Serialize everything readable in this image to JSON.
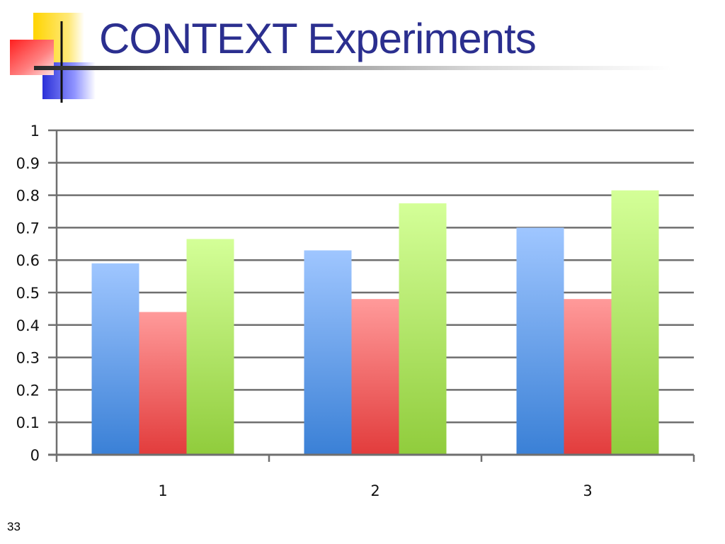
{
  "slide": {
    "title": "CONTEXT Experiments",
    "page_number": "33"
  },
  "colors": {
    "title": "#2b2f8f",
    "logo_yellow": "#ffd400",
    "logo_red": "#ff2a2a",
    "logo_blue": "#2b30d8"
  },
  "chart_data": {
    "type": "bar",
    "categories": [
      "1",
      "2",
      "3"
    ],
    "series": [
      {
        "color_top": "#9fc6ff",
        "color_bottom": "#3a80d6",
        "values": [
          0.59,
          0.63,
          0.7
        ]
      },
      {
        "color_top": "#ff9a9a",
        "color_bottom": "#e23c3c",
        "values": [
          0.44,
          0.48,
          0.48
        ]
      },
      {
        "color_top": "#d4ff98",
        "color_bottom": "#90cc3c",
        "values": [
          0.665,
          0.775,
          0.815
        ]
      }
    ],
    "ylim": [
      0,
      1
    ],
    "yticks": [
      "0",
      "0.1",
      "0.2",
      "0.3",
      "0.4",
      "0.5",
      "0.6",
      "0.7",
      "0.8",
      "0.9",
      "1"
    ],
    "xlabel": "",
    "ylabel": "",
    "grid": true,
    "legend": "none"
  }
}
